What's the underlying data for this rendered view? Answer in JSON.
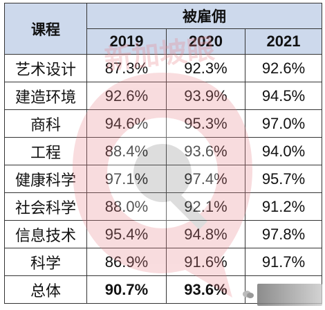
{
  "table": {
    "header_course": "课程",
    "header_group": "被雇佣",
    "years": [
      "2019",
      "2020",
      "2021"
    ],
    "rows": [
      {
        "course": "艺术设计",
        "values": [
          "87.3%",
          "92.3%",
          "92.6%"
        ]
      },
      {
        "course": "建造环境",
        "values": [
          "92.6%",
          "93.9%",
          "94.5%"
        ]
      },
      {
        "course": "商科",
        "values": [
          "94.6%",
          "95.3%",
          "97.0%"
        ]
      },
      {
        "course": "工程",
        "values": [
          "88.4%",
          "93.6%",
          "94.0%"
        ]
      },
      {
        "course": "健康科学",
        "values": [
          "97.1%",
          "97.4%",
          "95.7%"
        ]
      },
      {
        "course": "社会科学",
        "values": [
          "88.0%",
          "92.1%",
          "91.2%"
        ]
      },
      {
        "course": "信息技术",
        "values": [
          "95.4%",
          "94.8%",
          "97.8%"
        ]
      },
      {
        "course": "科学",
        "values": [
          "86.9%",
          "91.6%",
          "91.7%"
        ]
      }
    ],
    "total": {
      "course": "总体",
      "values": [
        "90.7%",
        "93.6%",
        ""
      ]
    }
  },
  "watermark": {
    "text": "新加坡眼",
    "color": "#e8868c"
  },
  "colors": {
    "header_bg": "#cdd9ec",
    "border": "#333333"
  }
}
